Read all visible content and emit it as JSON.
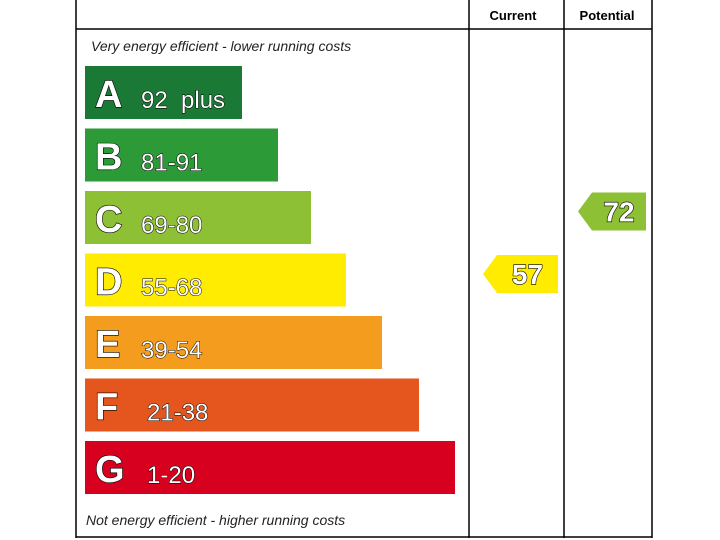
{
  "chart_data": {
    "type": "bar",
    "headers": {
      "current": "Current",
      "potential": "Potential"
    },
    "top_note": "Very energy efficient - lower running costs",
    "bottom_note": "Not energy efficient - higher running costs",
    "bands": [
      {
        "letter": "A",
        "range": "92  plus",
        "color": "#1a7a35"
      },
      {
        "letter": "B",
        "range": "81-91",
        "color": "#2c9a37"
      },
      {
        "letter": "C",
        "range": "69-80",
        "color": "#8dc034"
      },
      {
        "letter": "D",
        "range": "55-68",
        "color": "#ffec00"
      },
      {
        "letter": "E",
        "range": "39-54",
        "color": "#f39c1d"
      },
      {
        "letter": "F",
        "range": "21-38",
        "color": "#e5561e"
      },
      {
        "letter": "G",
        "range": "1-20",
        "color": "#d7001e"
      }
    ],
    "current": {
      "value": 57,
      "band": "D",
      "color": "#ffec00"
    },
    "potential": {
      "value": 72,
      "band": "C",
      "color": "#8dc034"
    }
  }
}
